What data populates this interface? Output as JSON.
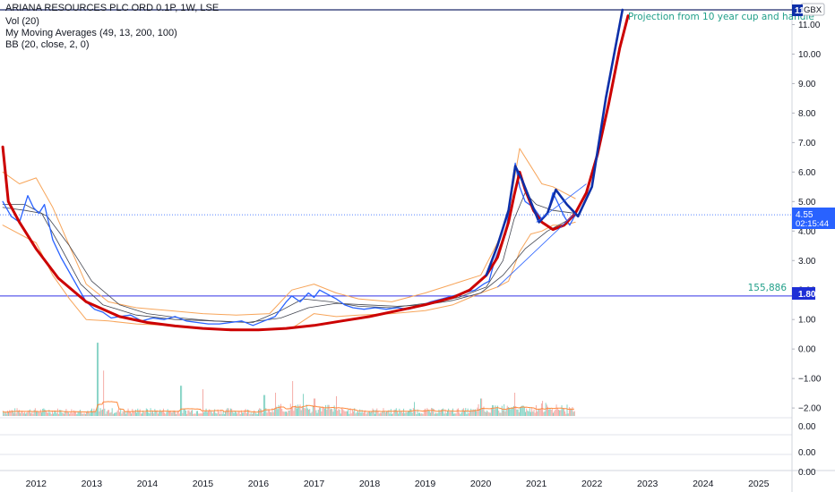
{
  "header": {
    "symbol_line": "ARIANA RESOURCES PLC ORD 0.1P, 1W, LSE",
    "vol_line": "Vol (20)",
    "ma_line": "My Moving Averages (49, 13, 200, 100)",
    "bb_line": "BB (20, close, 2, 0)"
  },
  "currency_badge": "GBX",
  "top_price_badge": "11",
  "annotation": "Projection from 10 year cup and handle",
  "price_badge": {
    "value": "4.55",
    "countdown": "02:15:44"
  },
  "level_badge": {
    "value": "1.80",
    "volume_label": "155,886"
  },
  "colors": {
    "price": "#2962ff",
    "cup": "#cc0000",
    "projection_blue": "#0d2fa8",
    "bb": "#f7a55a",
    "ma": "#434651",
    "hline": "#3131e8",
    "vol_up": "#7fd1c2",
    "vol_down": "#f4a8a3",
    "vol_ma": "#ff8a3d"
  },
  "chart_data": {
    "type": "line",
    "x_axis_labels": [
      "2012",
      "2013",
      "2014",
      "2015",
      "2016",
      "2017",
      "2018",
      "2019",
      "2020",
      "2021",
      "2022",
      "2023",
      "2024",
      "2025"
    ],
    "y_axis_labels": [
      "11.00",
      "10.00",
      "9.00",
      "8.00",
      "7.00",
      "6.00",
      "5.00",
      "4.00",
      "3.00",
      "2.00",
      "1.00",
      "0.00",
      "−1.00",
      "−2.00"
    ],
    "lower_pane_labels": [
      "0.00",
      "0.00",
      "0.00"
    ],
    "xlim": [
      2011.35,
      2025.6
    ],
    "ylim": [
      -2.3,
      11.5
    ],
    "horizontal_levels": [
      11.5,
      1.8
    ],
    "current_price": 4.55,
    "series": [
      {
        "name": "ARIANA RESOURCES PLC ORD 0.1P",
        "role": "price",
        "x": [
          2011.4,
          2011.55,
          2011.7,
          2011.85,
          2011.95,
          2012.05,
          2012.15,
          2012.3,
          2012.45,
          2012.6,
          2012.75,
          2012.9,
          2013.05,
          2013.2,
          2013.35,
          2013.5,
          2013.7,
          2013.9,
          2014.1,
          2014.3,
          2014.5,
          2014.7,
          2014.9,
          2015.1,
          2015.3,
          2015.5,
          2015.7,
          2015.9,
          2016.1,
          2016.3,
          2016.5,
          2016.6,
          2016.75,
          2016.9,
          2017.0,
          2017.1,
          2017.25,
          2017.4,
          2017.55,
          2017.7,
          2017.9,
          2018.1,
          2018.3,
          2018.5,
          2018.7,
          2018.9,
          2019.1,
          2019.3,
          2019.5,
          2019.7,
          2019.9,
          2020.05,
          2020.15,
          2020.25,
          2020.35,
          2020.45,
          2020.55,
          2020.62,
          2020.7,
          2020.8,
          2020.95,
          2021.1,
          2021.2,
          2021.3,
          2021.4,
          2021.5,
          2021.6,
          2021.7
        ],
        "values": [
          5.0,
          4.5,
          4.3,
          5.2,
          4.8,
          4.6,
          4.9,
          3.7,
          3.1,
          2.6,
          2.1,
          1.6,
          1.35,
          1.25,
          1.05,
          1.1,
          1.15,
          0.95,
          1.05,
          1.0,
          1.1,
          0.95,
          0.9,
          0.85,
          0.85,
          0.9,
          0.95,
          0.8,
          0.95,
          1.1,
          1.6,
          1.8,
          1.6,
          1.9,
          1.75,
          2.0,
          1.85,
          1.7,
          1.5,
          1.4,
          1.35,
          1.4,
          1.35,
          1.4,
          1.35,
          1.45,
          1.6,
          1.7,
          1.8,
          1.9,
          2.0,
          2.2,
          2.3,
          3.0,
          3.5,
          3.9,
          5.3,
          6.3,
          5.5,
          5.0,
          4.8,
          4.4,
          4.6,
          5.3,
          4.9,
          4.5,
          4.2,
          4.55
        ]
      },
      {
        "name": "BB upper",
        "role": "bb",
        "x": [
          2011.4,
          2011.7,
          2012.0,
          2012.3,
          2012.6,
          2012.9,
          2013.3,
          2013.8,
          2014.4,
          2015.0,
          2015.6,
          2016.2,
          2016.6,
          2017.0,
          2017.4,
          2017.8,
          2018.4,
          2019.0,
          2019.5,
          2020.0,
          2020.3,
          2020.5,
          2020.7,
          2020.9,
          2021.1,
          2021.3,
          2021.5,
          2021.7
        ],
        "values": [
          6.0,
          5.6,
          5.8,
          4.8,
          3.5,
          2.2,
          1.6,
          1.4,
          1.3,
          1.2,
          1.15,
          1.2,
          2.0,
          2.2,
          1.9,
          1.7,
          1.6,
          1.9,
          2.2,
          2.5,
          3.6,
          4.6,
          6.8,
          6.2,
          5.6,
          5.5,
          5.3,
          5.1
        ]
      },
      {
        "name": "BB lower",
        "role": "bb",
        "x": [
          2011.4,
          2011.7,
          2012.0,
          2012.3,
          2012.6,
          2012.9,
          2013.3,
          2013.8,
          2014.4,
          2015.0,
          2015.6,
          2016.2,
          2016.6,
          2017.0,
          2017.4,
          2017.8,
          2018.4,
          2019.0,
          2019.5,
          2020.0,
          2020.3,
          2020.5,
          2020.7,
          2020.9,
          2021.1,
          2021.3,
          2021.5,
          2021.7
        ],
        "values": [
          4.2,
          3.9,
          3.6,
          2.5,
          1.7,
          1.0,
          0.95,
          0.85,
          0.8,
          0.7,
          0.68,
          0.65,
          0.7,
          1.2,
          1.1,
          1.15,
          1.2,
          1.3,
          1.5,
          1.9,
          2.1,
          2.3,
          3.3,
          3.9,
          4.0,
          4.2,
          4.2,
          4.3
        ]
      },
      {
        "name": "MA slow",
        "role": "ma",
        "x": [
          2011.4,
          2011.8,
          2012.2,
          2012.6,
          2013.0,
          2013.5,
          2014.0,
          2014.6,
          2015.2,
          2015.8,
          2016.4,
          2016.9,
          2017.4,
          2017.9,
          2018.5,
          2019.0,
          2019.5,
          2020.0,
          2020.4,
          2020.8,
          2021.2,
          2021.7
        ],
        "values": [
          4.9,
          4.9,
          4.5,
          3.5,
          2.3,
          1.5,
          1.2,
          1.05,
          0.95,
          0.9,
          1.05,
          1.4,
          1.55,
          1.5,
          1.45,
          1.5,
          1.65,
          1.9,
          2.5,
          3.4,
          4.0,
          4.5
        ]
      },
      {
        "name": "MA fast",
        "role": "ma",
        "x": [
          2011.4,
          2011.8,
          2012.1,
          2012.4,
          2012.8,
          2013.2,
          2013.8,
          2014.5,
          2015.2,
          2015.9,
          2016.4,
          2016.8,
          2017.3,
          2017.8,
          2018.4,
          2019.0,
          2019.6,
          2020.1,
          2020.4,
          2020.6,
          2020.8,
          2021.0,
          2021.3,
          2021.7
        ],
        "values": [
          4.8,
          4.7,
          4.6,
          3.6,
          2.2,
          1.5,
          1.15,
          1.0,
          0.95,
          0.9,
          1.3,
          1.7,
          1.6,
          1.45,
          1.4,
          1.55,
          1.75,
          2.1,
          3.0,
          4.4,
          5.3,
          4.9,
          4.7,
          4.6
        ]
      },
      {
        "name": "Cup and handle",
        "role": "cup",
        "x": [
          2011.4,
          2011.5,
          2011.7,
          2012.0,
          2012.4,
          2012.9,
          2013.5,
          2014.0,
          2014.5,
          2015.0,
          2015.5,
          2016.0,
          2016.5,
          2017.0,
          2017.5,
          2018.0,
          2018.5,
          2019.0,
          2019.5,
          2019.8,
          2020.1,
          2020.3,
          2020.5,
          2020.6,
          2020.7,
          2020.8,
          2020.95,
          2021.1,
          2021.3,
          2021.5,
          2021.7,
          2021.9,
          2022.1,
          2022.3,
          2022.5,
          2022.65
        ],
        "values": [
          6.85,
          5.0,
          4.3,
          3.4,
          2.4,
          1.6,
          1.1,
          0.9,
          0.78,
          0.7,
          0.65,
          0.65,
          0.7,
          0.8,
          0.95,
          1.1,
          1.3,
          1.5,
          1.75,
          2.0,
          2.5,
          3.1,
          4.3,
          5.2,
          6.0,
          5.4,
          4.7,
          4.3,
          4.05,
          4.2,
          4.6,
          5.3,
          6.6,
          8.3,
          10.2,
          11.3
        ]
      },
      {
        "name": "Projection",
        "role": "projection",
        "x": [
          2020.1,
          2020.3,
          2020.5,
          2020.62,
          2020.75,
          2020.9,
          2021.05,
          2021.2,
          2021.35,
          2021.55,
          2021.75,
          2022.0,
          2022.25,
          2022.55
        ],
        "values": [
          2.5,
          3.5,
          4.7,
          6.2,
          5.7,
          5.0,
          4.3,
          4.6,
          5.4,
          4.9,
          4.5,
          5.5,
          8.5,
          11.5
        ]
      }
    ],
    "volume": {
      "x_start": 2011.4,
      "x_end": 2021.7,
      "bars": 536,
      "spikes": [
        [
          2013.1,
          6.3
        ],
        [
          2013.2,
          3.9
        ],
        [
          2014.6,
          2.6
        ],
        [
          2015.0,
          2.3
        ],
        [
          2016.1,
          1.8
        ],
        [
          2016.3,
          2.0
        ],
        [
          2016.6,
          3.0
        ],
        [
          2016.8,
          1.9
        ],
        [
          2017.0,
          1.5
        ],
        [
          2017.4,
          1.7
        ],
        [
          2018.8,
          1.2
        ],
        [
          2020.0,
          1.5
        ],
        [
          2020.6,
          2.0
        ],
        [
          2021.1,
          1.3
        ],
        [
          2021.7,
          0.8
        ]
      ]
    }
  }
}
